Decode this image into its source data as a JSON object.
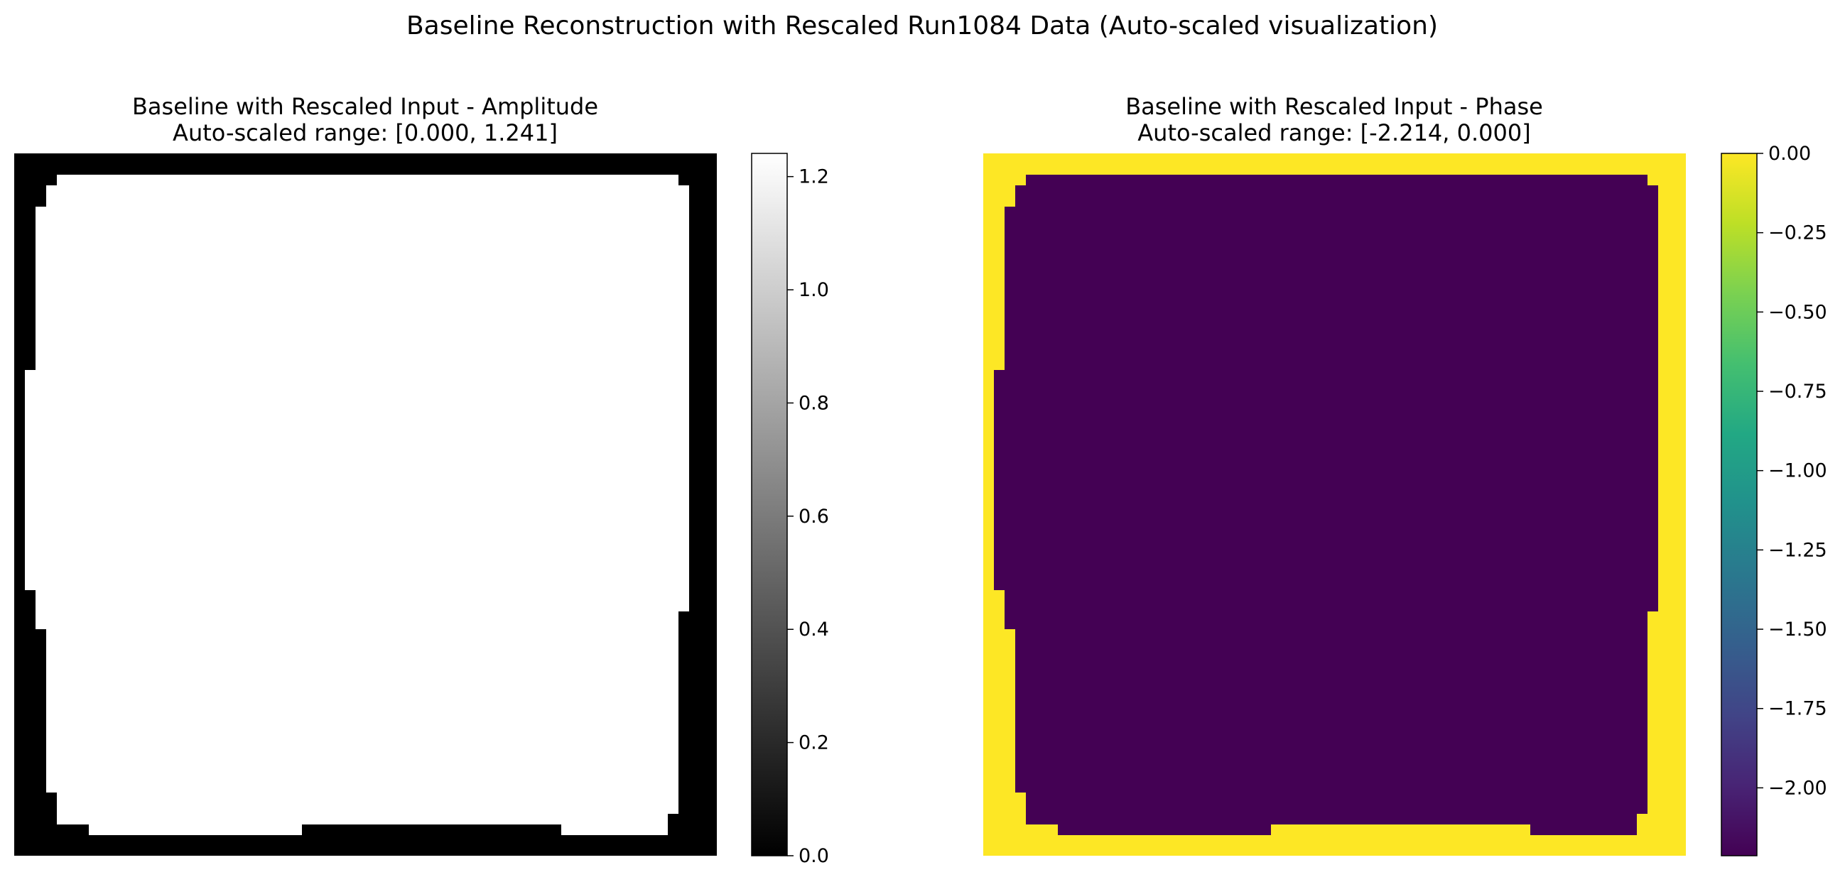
{
  "figure": {
    "suptitle": "Baseline Reconstruction with Rescaled Run1084 Data (Auto-scaled visualization)"
  },
  "chart_data": [
    {
      "type": "heatmap",
      "title_line1": "Baseline with Rescaled Input - Amplitude",
      "title_line2": "Auto-scaled range: [0.000, 1.241]",
      "colormap": "gray",
      "vmin": 0.0,
      "vmax": 1.241,
      "inside_value": 1.241,
      "outside_value": 0.0,
      "colorbar_ticks": [
        0.0,
        0.2,
        0.4,
        0.6,
        0.8,
        1.0,
        1.2
      ],
      "colorbar_tick_labels": [
        "0.0",
        "0.2",
        "0.4",
        "0.6",
        "0.8",
        "1.0",
        "1.2"
      ],
      "axes": "off"
    },
    {
      "type": "heatmap",
      "title_line1": "Baseline with Rescaled Input - Phase",
      "title_line2": "Auto-scaled range: [-2.214, 0.000]",
      "colormap": "viridis",
      "vmin": -2.214,
      "vmax": 0.0,
      "inside_value": -2.214,
      "outside_value": 0.0,
      "colorbar_ticks": [
        0.0,
        -0.25,
        -0.5,
        -0.75,
        -1.0,
        -1.25,
        -1.5,
        -1.75,
        -2.0
      ],
      "colorbar_tick_labels": [
        "0.00",
        "−0.25",
        "−0.50",
        "−0.75",
        "−1.00",
        "−1.25",
        "−1.50",
        "−1.75",
        "−2.00"
      ],
      "axes": "off"
    }
  ]
}
